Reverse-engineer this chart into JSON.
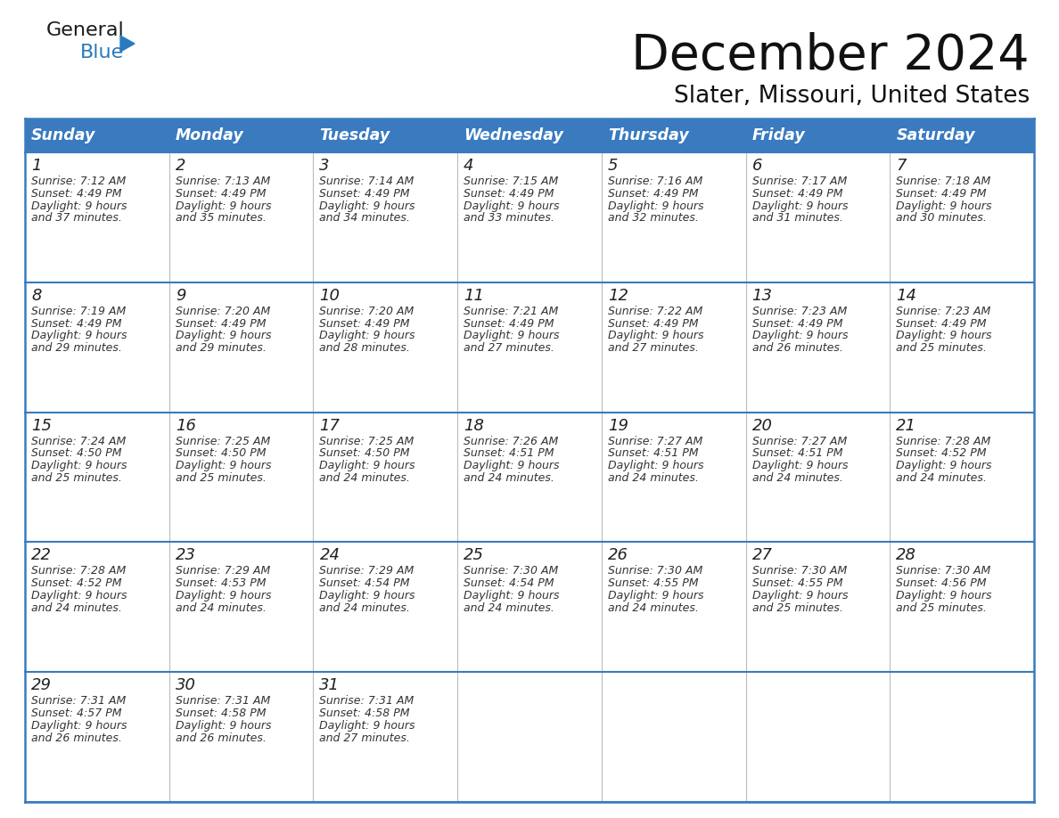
{
  "title": "December 2024",
  "subtitle": "Slater, Missouri, United States",
  "header_color": "#3a7abf",
  "header_text_color": "#ffffff",
  "border_color": "#3a7abf",
  "grid_color": "#aaaaaa",
  "days_of_week": [
    "Sunday",
    "Monday",
    "Tuesday",
    "Wednesday",
    "Thursday",
    "Friday",
    "Saturday"
  ],
  "weeks": [
    [
      {
        "day": "1",
        "sunrise": "7:12 AM",
        "sunset": "4:49 PM",
        "daylight": "9 hours",
        "daylight2": "and 37 minutes."
      },
      {
        "day": "2",
        "sunrise": "7:13 AM",
        "sunset": "4:49 PM",
        "daylight": "9 hours",
        "daylight2": "and 35 minutes."
      },
      {
        "day": "3",
        "sunrise": "7:14 AM",
        "sunset": "4:49 PM",
        "daylight": "9 hours",
        "daylight2": "and 34 minutes."
      },
      {
        "day": "4",
        "sunrise": "7:15 AM",
        "sunset": "4:49 PM",
        "daylight": "9 hours",
        "daylight2": "and 33 minutes."
      },
      {
        "day": "5",
        "sunrise": "7:16 AM",
        "sunset": "4:49 PM",
        "daylight": "9 hours",
        "daylight2": "and 32 minutes."
      },
      {
        "day": "6",
        "sunrise": "7:17 AM",
        "sunset": "4:49 PM",
        "daylight": "9 hours",
        "daylight2": "and 31 minutes."
      },
      {
        "day": "7",
        "sunrise": "7:18 AM",
        "sunset": "4:49 PM",
        "daylight": "9 hours",
        "daylight2": "and 30 minutes."
      }
    ],
    [
      {
        "day": "8",
        "sunrise": "7:19 AM",
        "sunset": "4:49 PM",
        "daylight": "9 hours",
        "daylight2": "and 29 minutes."
      },
      {
        "day": "9",
        "sunrise": "7:20 AM",
        "sunset": "4:49 PM",
        "daylight": "9 hours",
        "daylight2": "and 29 minutes."
      },
      {
        "day": "10",
        "sunrise": "7:20 AM",
        "sunset": "4:49 PM",
        "daylight": "9 hours",
        "daylight2": "and 28 minutes."
      },
      {
        "day": "11",
        "sunrise": "7:21 AM",
        "sunset": "4:49 PM",
        "daylight": "9 hours",
        "daylight2": "and 27 minutes."
      },
      {
        "day": "12",
        "sunrise": "7:22 AM",
        "sunset": "4:49 PM",
        "daylight": "9 hours",
        "daylight2": "and 27 minutes."
      },
      {
        "day": "13",
        "sunrise": "7:23 AM",
        "sunset": "4:49 PM",
        "daylight": "9 hours",
        "daylight2": "and 26 minutes."
      },
      {
        "day": "14",
        "sunrise": "7:23 AM",
        "sunset": "4:49 PM",
        "daylight": "9 hours",
        "daylight2": "and 25 minutes."
      }
    ],
    [
      {
        "day": "15",
        "sunrise": "7:24 AM",
        "sunset": "4:50 PM",
        "daylight": "9 hours",
        "daylight2": "and 25 minutes."
      },
      {
        "day": "16",
        "sunrise": "7:25 AM",
        "sunset": "4:50 PM",
        "daylight": "9 hours",
        "daylight2": "and 25 minutes."
      },
      {
        "day": "17",
        "sunrise": "7:25 AM",
        "sunset": "4:50 PM",
        "daylight": "9 hours",
        "daylight2": "and 24 minutes."
      },
      {
        "day": "18",
        "sunrise": "7:26 AM",
        "sunset": "4:51 PM",
        "daylight": "9 hours",
        "daylight2": "and 24 minutes."
      },
      {
        "day": "19",
        "sunrise": "7:27 AM",
        "sunset": "4:51 PM",
        "daylight": "9 hours",
        "daylight2": "and 24 minutes."
      },
      {
        "day": "20",
        "sunrise": "7:27 AM",
        "sunset": "4:51 PM",
        "daylight": "9 hours",
        "daylight2": "and 24 minutes."
      },
      {
        "day": "21",
        "sunrise": "7:28 AM",
        "sunset": "4:52 PM",
        "daylight": "9 hours",
        "daylight2": "and 24 minutes."
      }
    ],
    [
      {
        "day": "22",
        "sunrise": "7:28 AM",
        "sunset": "4:52 PM",
        "daylight": "9 hours",
        "daylight2": "and 24 minutes."
      },
      {
        "day": "23",
        "sunrise": "7:29 AM",
        "sunset": "4:53 PM",
        "daylight": "9 hours",
        "daylight2": "and 24 minutes."
      },
      {
        "day": "24",
        "sunrise": "7:29 AM",
        "sunset": "4:54 PM",
        "daylight": "9 hours",
        "daylight2": "and 24 minutes."
      },
      {
        "day": "25",
        "sunrise": "7:30 AM",
        "sunset": "4:54 PM",
        "daylight": "9 hours",
        "daylight2": "and 24 minutes."
      },
      {
        "day": "26",
        "sunrise": "7:30 AM",
        "sunset": "4:55 PM",
        "daylight": "9 hours",
        "daylight2": "and 24 minutes."
      },
      {
        "day": "27",
        "sunrise": "7:30 AM",
        "sunset": "4:55 PM",
        "daylight": "9 hours",
        "daylight2": "and 25 minutes."
      },
      {
        "day": "28",
        "sunrise": "7:30 AM",
        "sunset": "4:56 PM",
        "daylight": "9 hours",
        "daylight2": "and 25 minutes."
      }
    ],
    [
      {
        "day": "29",
        "sunrise": "7:31 AM",
        "sunset": "4:57 PM",
        "daylight": "9 hours",
        "daylight2": "and 26 minutes."
      },
      {
        "day": "30",
        "sunrise": "7:31 AM",
        "sunset": "4:58 PM",
        "daylight": "9 hours",
        "daylight2": "and 26 minutes."
      },
      {
        "day": "31",
        "sunrise": "7:31 AM",
        "sunset": "4:58 PM",
        "daylight": "9 hours",
        "daylight2": "and 27 minutes."
      },
      null,
      null,
      null,
      null
    ]
  ]
}
